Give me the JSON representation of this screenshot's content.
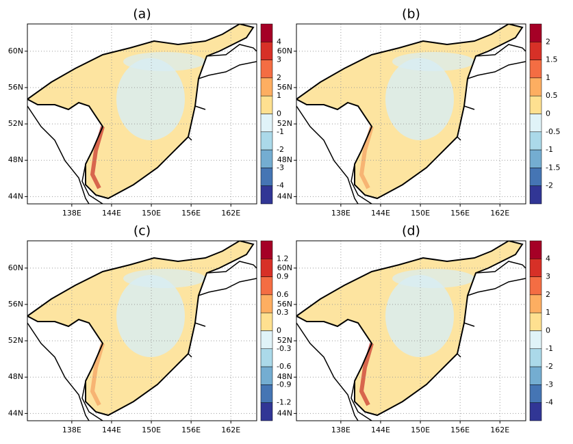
{
  "panels": [
    {
      "title": "(a)",
      "colorbar_ticks": [
        4,
        3,
        2,
        1,
        0,
        -1,
        -2,
        -3,
        -4
      ]
    },
    {
      "title": "(b)",
      "colorbar_ticks": [
        2,
        1.5,
        1,
        0.5,
        0,
        -0.5,
        -1,
        -1.5,
        -2
      ]
    },
    {
      "title": "(c)",
      "colorbar_ticks": [
        1.2,
        0.9,
        0.6,
        0.3,
        0,
        -0.3,
        -0.6,
        -0.9,
        -1.2
      ]
    },
    {
      "title": "(d)",
      "colorbar_ticks": [
        4,
        3,
        2,
        1,
        0,
        -1,
        -2,
        -3,
        -4
      ]
    }
  ],
  "lon_ticks": [
    {
      "value": 138,
      "label": "138E"
    },
    {
      "value": 144,
      "label": "144E"
    },
    {
      "value": 150,
      "label": "150E"
    },
    {
      "value": 156,
      "label": "156E"
    },
    {
      "value": 162,
      "label": "162E"
    }
  ],
  "lat_ticks": [
    {
      "value": 60,
      "label": "60N"
    },
    {
      "value": 56,
      "label": "56N"
    },
    {
      "value": 52,
      "label": "52N"
    },
    {
      "value": 48,
      "label": "48N"
    },
    {
      "value": 44,
      "label": "44N"
    }
  ],
  "xlim": [
    131.3,
    165.9
  ],
  "ylim": [
    43.2,
    63
  ],
  "colors": [
    "#a50026",
    "#d73027",
    "#f46d43",
    "#fdae61",
    "#fee090",
    "#e0f3f8",
    "#abd9e9",
    "#74add1",
    "#4575b4",
    "#313695"
  ]
}
